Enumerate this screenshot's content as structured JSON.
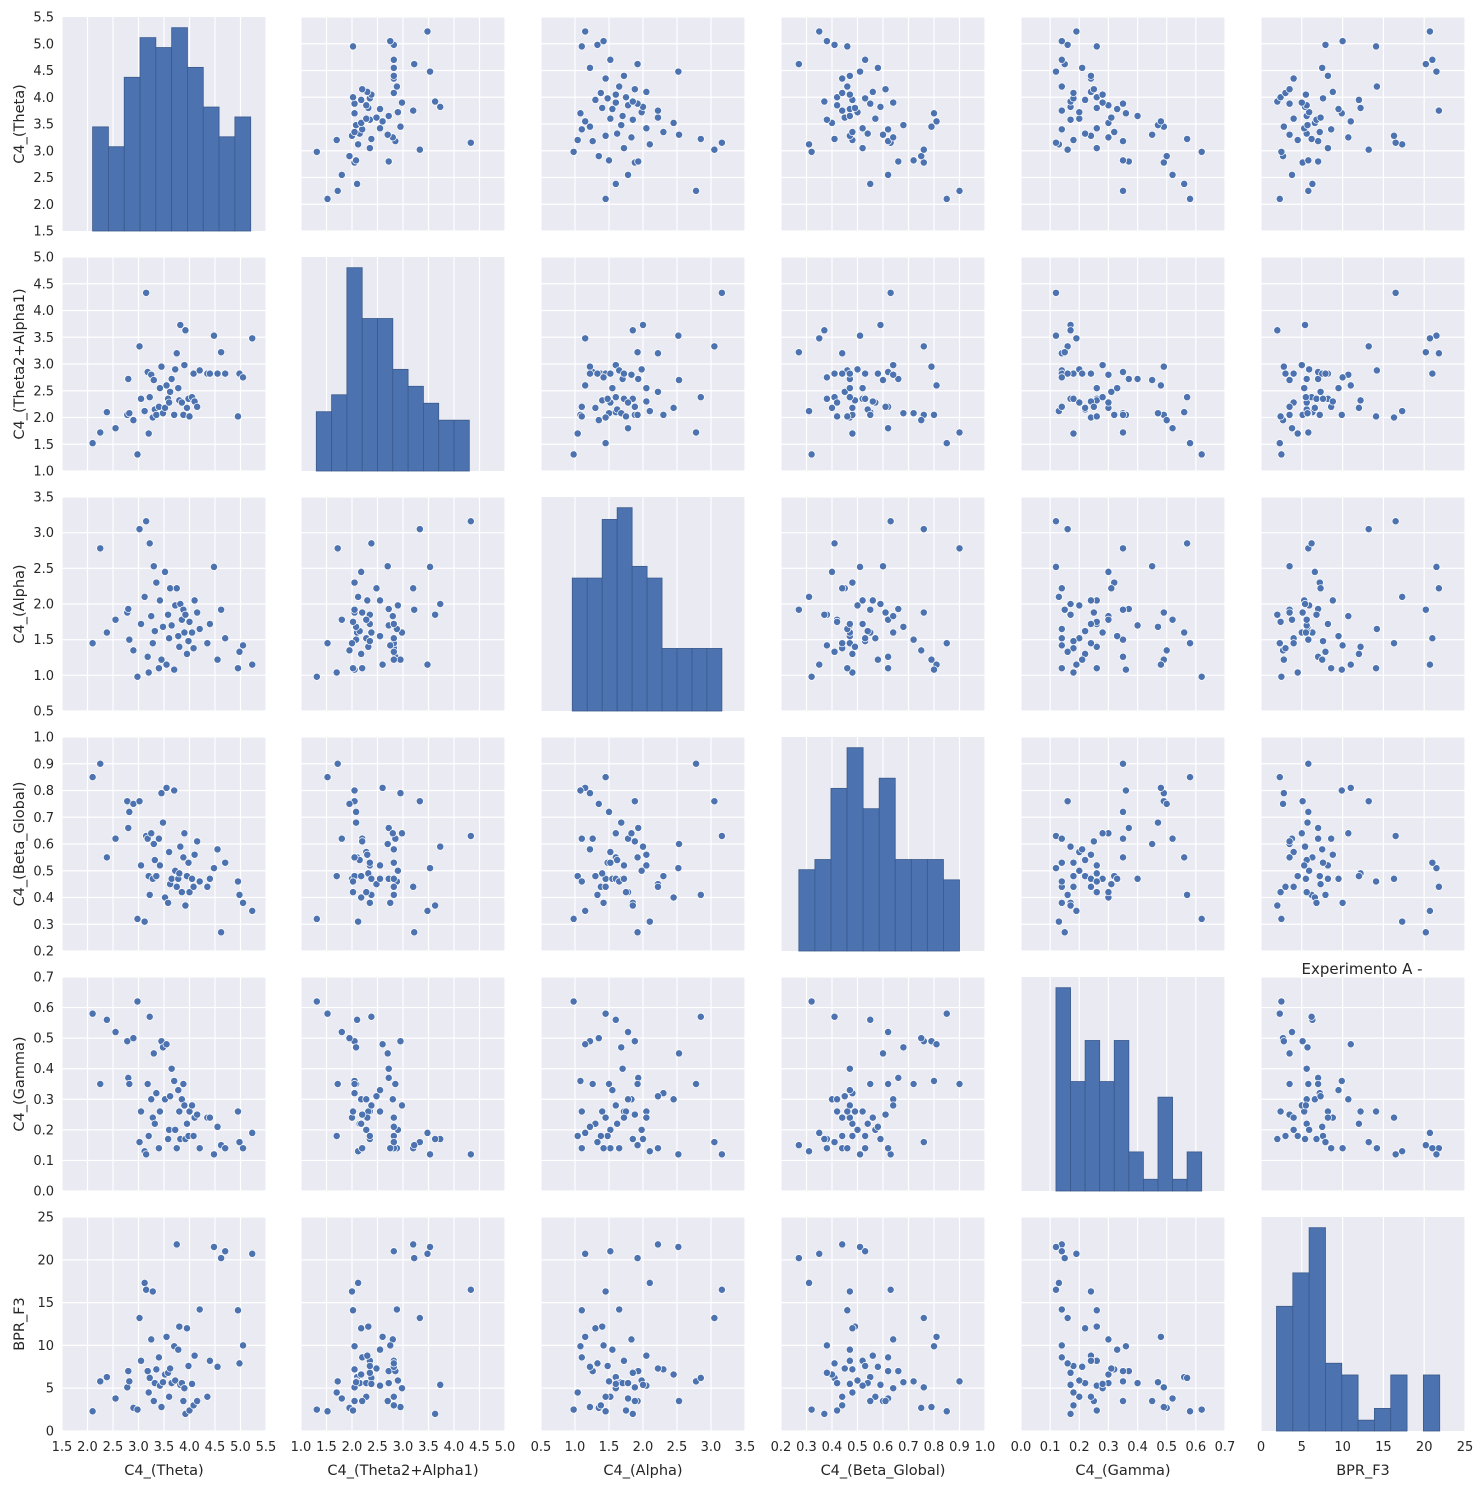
{
  "chart_data": {
    "type": "scatter",
    "style": "seaborn pairplot (darkgrid)",
    "title": "Experimento A -",
    "colors": {
      "point": "#4c72b0",
      "bar": "#4c72b0",
      "panel_bg": "#eaeaf2",
      "grid": "#ffffff",
      "edge": "#ffffff"
    },
    "variables": [
      {
        "name": "C4_(Theta)",
        "lim": [
          1.5,
          5.5
        ],
        "ticks": [
          "1.5",
          "2.0",
          "2.5",
          "3.0",
          "3.5",
          "4.0",
          "4.5",
          "5.0",
          "5.5"
        ]
      },
      {
        "name": "C4_(Theta2+Alpha1)",
        "lim": [
          1.0,
          5.0
        ],
        "ticks": [
          "1.0",
          "1.5",
          "2.0",
          "2.5",
          "3.0",
          "3.5",
          "4.0",
          "4.5",
          "5.0"
        ]
      },
      {
        "name": "C4_(Alpha)",
        "lim": [
          0.5,
          3.5
        ],
        "ticks": [
          "0.5",
          "1.0",
          "1.5",
          "2.0",
          "2.5",
          "3.0",
          "3.5"
        ]
      },
      {
        "name": "C4_(Beta_Global)",
        "lim": [
          0.2,
          1.0
        ],
        "ticks": [
          "0.2",
          "0.3",
          "0.4",
          "0.5",
          "0.6",
          "0.7",
          "0.8",
          "0.9",
          "1.0"
        ]
      },
      {
        "name": "C4_(Gamma)",
        "lim": [
          0.0,
          0.7
        ],
        "ticks": [
          "0.0",
          "0.1",
          "0.2",
          "0.3",
          "0.4",
          "0.5",
          "0.6",
          "0.7"
        ]
      },
      {
        "name": "BPR_F3",
        "lim": [
          0,
          25
        ],
        "ticks": [
          "0",
          "5",
          "10",
          "15",
          "20",
          "25"
        ]
      }
    ],
    "observations": [
      [
        2.1,
        1.52,
        1.45,
        0.85,
        0.58,
        2.3
      ],
      [
        2.25,
        1.72,
        2.78,
        0.9,
        0.35,
        5.8
      ],
      [
        2.38,
        2.1,
        1.6,
        0.55,
        0.56,
        6.3
      ],
      [
        2.55,
        1.8,
        1.78,
        0.62,
        0.52,
        3.8
      ],
      [
        2.78,
        2.05,
        1.88,
        0.76,
        0.49,
        5.1
      ],
      [
        2.8,
        2.72,
        1.93,
        0.66,
        0.37,
        7.0
      ],
      [
        2.82,
        2.08,
        1.5,
        0.72,
        0.35,
        5.8
      ],
      [
        2.9,
        1.95,
        1.35,
        0.75,
        0.5,
        2.7
      ],
      [
        2.98,
        1.31,
        0.98,
        0.32,
        0.62,
        2.5
      ],
      [
        3.02,
        3.33,
        3.05,
        0.76,
        0.16,
        13.2
      ],
      [
        3.05,
        2.35,
        1.72,
        0.52,
        0.26,
        8.2
      ],
      [
        3.12,
        2.12,
        2.1,
        0.31,
        0.13,
        17.3
      ],
      [
        3.15,
        4.33,
        3.16,
        0.63,
        0.12,
        16.5
      ],
      [
        3.18,
        2.85,
        1.26,
        0.62,
        0.35,
        7.0
      ],
      [
        3.2,
        1.7,
        1.04,
        0.48,
        0.18,
        4.5
      ],
      [
        3.22,
        2.38,
        2.85,
        0.41,
        0.57,
        6.2
      ],
      [
        3.25,
        2.8,
        1.83,
        0.64,
        0.3,
        10.7
      ],
      [
        3.28,
        2.0,
        1.45,
        0.47,
        0.24,
        16.3
      ],
      [
        3.3,
        2.7,
        2.53,
        0.6,
        0.45,
        3.5
      ],
      [
        3.32,
        2.15,
        1.62,
        0.54,
        0.22,
        5.6
      ],
      [
        3.35,
        2.05,
        2.3,
        0.48,
        0.32,
        7.2
      ],
      [
        3.4,
        2.2,
        1.1,
        0.62,
        0.14,
        8.6
      ],
      [
        3.42,
        2.55,
        2.05,
        0.52,
        0.26,
        5.3
      ],
      [
        3.45,
        2.95,
        1.22,
        0.79,
        0.49,
        2.8
      ],
      [
        3.48,
        2.08,
        1.68,
        0.68,
        0.47,
        5.7
      ],
      [
        3.52,
        2.18,
        2.45,
        0.4,
        0.3,
        6.6
      ],
      [
        3.55,
        2.6,
        1.15,
        0.81,
        0.48,
        11.0
      ],
      [
        3.58,
        2.35,
        1.85,
        0.38,
        0.17,
        6.8
      ],
      [
        3.6,
        2.28,
        1.52,
        0.57,
        0.2,
        4.0
      ],
      [
        3.62,
        2.48,
        2.22,
        0.45,
        0.31,
        7.3
      ],
      [
        3.65,
        2.72,
        1.7,
        0.47,
        0.4,
        5.6
      ],
      [
        3.7,
        2.05,
        1.08,
        0.8,
        0.36,
        9.9
      ],
      [
        3.72,
        2.9,
        1.98,
        0.5,
        0.2,
        5.9
      ],
      [
        3.75,
        3.2,
        2.22,
        0.44,
        0.14,
        21.8
      ],
      [
        3.78,
        2.55,
        1.55,
        0.47,
        0.33,
        9.5
      ],
      [
        3.8,
        2.32,
        1.4,
        0.49,
        0.26,
        12.2
      ],
      [
        3.82,
        3.73,
        2.0,
        0.59,
        0.17,
        5.4
      ],
      [
        3.85,
        2.28,
        1.78,
        0.42,
        0.3,
        5.6
      ],
      [
        3.88,
        2.05,
        1.92,
        0.55,
        0.35,
        3.5
      ],
      [
        3.9,
        2.98,
        1.6,
        0.64,
        0.28,
        5.0
      ],
      [
        3.92,
        3.63,
        1.85,
        0.37,
        0.17,
        2.0
      ],
      [
        3.95,
        2.18,
        1.3,
        0.48,
        0.22,
        12.0
      ],
      [
        3.98,
        2.35,
        1.48,
        0.53,
        0.18,
        7.6
      ],
      [
        4.0,
        2.02,
        1.75,
        0.42,
        0.26,
        2.4
      ],
      [
        4.05,
        2.38,
        1.6,
        0.47,
        0.28,
        5.5
      ],
      [
        4.08,
        2.82,
        1.38,
        0.44,
        0.18,
        3.0
      ],
      [
        4.1,
        2.3,
        2.05,
        0.56,
        0.24,
        8.8
      ],
      [
        4.15,
        2.2,
        1.88,
        0.61,
        0.25,
        3.5
      ],
      [
        4.2,
        2.88,
        1.65,
        0.46,
        0.14,
        14.2
      ],
      [
        4.35,
        2.82,
        1.45,
        0.44,
        0.24,
        4.0
      ],
      [
        4.4,
        2.82,
        1.72,
        0.47,
        0.24,
        8.2
      ],
      [
        4.48,
        3.53,
        2.52,
        0.51,
        0.12,
        21.5
      ],
      [
        4.55,
        2.82,
        1.22,
        0.58,
        0.21,
        7.5
      ],
      [
        4.62,
        3.22,
        1.92,
        0.27,
        0.15,
        20.2
      ],
      [
        4.7,
        2.82,
        1.52,
        0.53,
        0.14,
        21.0
      ],
      [
        4.95,
        2.02,
        1.1,
        0.46,
        0.26,
        14.1
      ],
      [
        4.98,
        2.82,
        1.33,
        0.41,
        0.16,
        7.9
      ],
      [
        5.05,
        2.75,
        1.42,
        0.38,
        0.14,
        10.0
      ],
      [
        5.23,
        3.48,
        1.15,
        0.35,
        0.19,
        20.7
      ]
    ],
    "histograms": [
      {
        "bin_edges": [
          2.1,
          2.41,
          2.72,
          3.03,
          3.34,
          3.65,
          3.96,
          4.27,
          4.58,
          4.89,
          5.2
        ],
        "counts": [
          2.1,
          1.7,
          3.1,
          3.9,
          3.7,
          4.1,
          3.3,
          2.5,
          1.9,
          2.3
        ]
      },
      {
        "bin_edges": [
          1.3,
          1.6,
          1.9,
          2.2,
          2.5,
          2.8,
          3.1,
          3.4,
          3.7,
          4.0,
          4.3
        ],
        "counts": [
          1.4,
          1.8,
          4.8,
          3.6,
          3.6,
          2.4,
          2.0,
          1.6,
          1.2,
          1.2
        ]
      },
      {
        "bin_edges": [
          0.96,
          1.18,
          1.4,
          1.62,
          1.84,
          2.06,
          2.28,
          2.5,
          2.72,
          2.94,
          3.16
        ],
        "counts": [
          1.7,
          1.7,
          2.45,
          2.6,
          1.85,
          1.7,
          0.8,
          0.8,
          0.8,
          0.8
        ]
      },
      {
        "bin_edges": [
          0.27,
          0.333,
          0.396,
          0.459,
          0.522,
          0.585,
          0.648,
          0.711,
          0.774,
          0.837,
          0.9
        ],
        "counts": [
          0.32,
          0.36,
          0.64,
          0.8,
          0.56,
          0.68,
          0.36,
          0.36,
          0.36,
          0.28
        ]
      },
      {
        "bin_edges": [
          0.12,
          0.17,
          0.22,
          0.27,
          0.32,
          0.37,
          0.42,
          0.47,
          0.52,
          0.57,
          0.62
        ],
        "counts": [
          0.52,
          0.28,
          0.385,
          0.28,
          0.385,
          0.1,
          0.03,
          0.24,
          0.03,
          0.1
        ]
      },
      {
        "bin_edges": [
          1.9,
          3.9,
          5.9,
          7.9,
          9.9,
          11.9,
          13.9,
          15.9,
          17.9,
          19.9,
          21.9
        ],
        "counts": [
          13.8,
          17.5,
          22.5,
          7.5,
          6.2,
          1.2,
          2.5,
          6.2,
          0,
          6.2
        ]
      }
    ]
  }
}
